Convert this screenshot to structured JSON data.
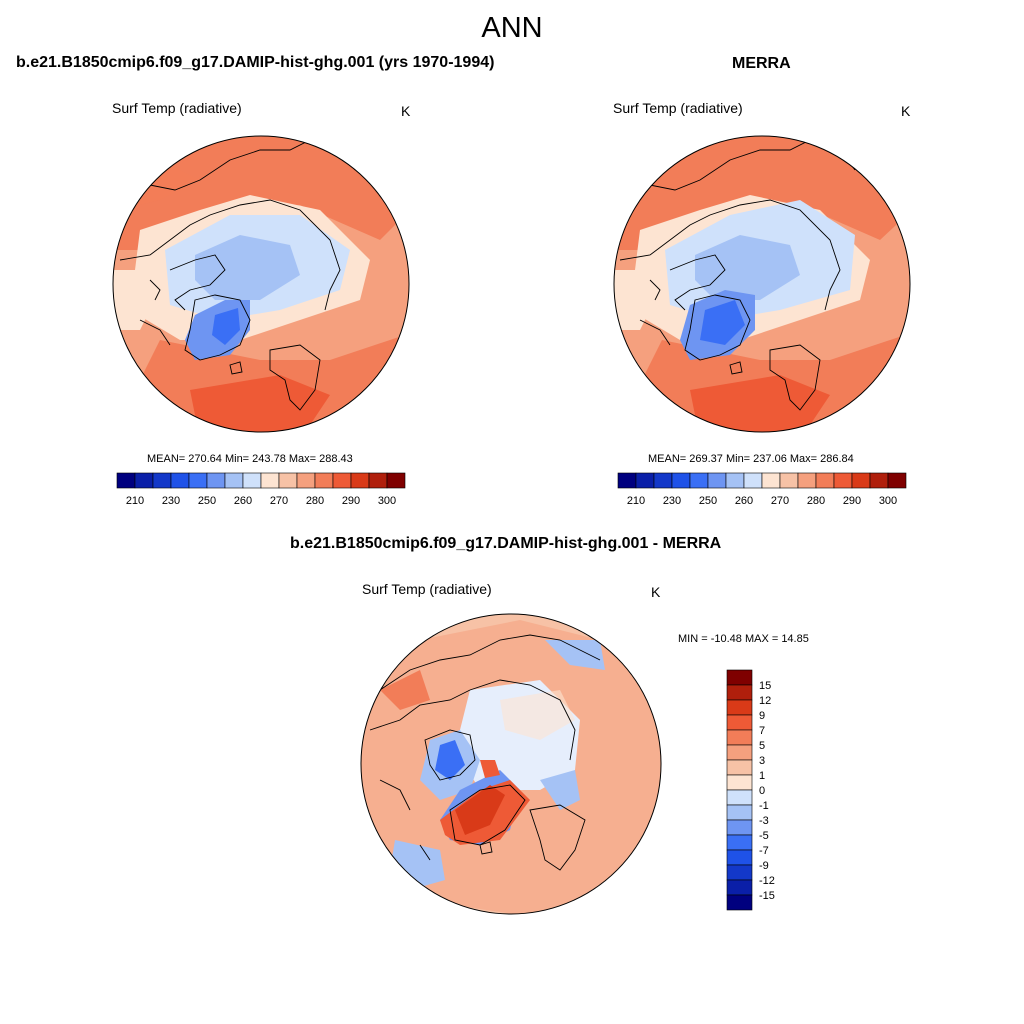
{
  "figure_title": "ANN",
  "panels": [
    {
      "title": "b.e21.B1850cmip6.f09_g17.DAMIP-hist-ghg.001 (yrs 1970-1994)",
      "variable": "Surf Temp (radiative)",
      "units": "K",
      "stats": "MEAN= 270.64  Min= 243.78  Max= 288.43"
    },
    {
      "title": "MERRA",
      "variable": "Surf Temp (radiative)",
      "units": "K",
      "stats": "MEAN= 269.37  Min= 237.06  Max= 286.84"
    },
    {
      "title": "b.e21.B1850cmip6.f09_g17.DAMIP-hist-ghg.001 - MERRA",
      "variable": "Surf Temp (radiative)",
      "units": "K",
      "stats": "MIN = -10.48 MAX =  14.85"
    }
  ],
  "colorbars": {
    "absolute": {
      "colors": [
        "#00007f",
        "#0a1fa8",
        "#1338c9",
        "#1f52e8",
        "#3a6ff5",
        "#6e95f2",
        "#a5c2f5",
        "#cfe1fb",
        "#fde4d2",
        "#f7c2a6",
        "#f5a07e",
        "#f27d58",
        "#ee5a36",
        "#d93a18",
        "#b01f0c",
        "#7f0000"
      ],
      "labels": [
        "210",
        "230",
        "250",
        "260",
        "270",
        "280",
        "290",
        "300"
      ]
    },
    "difference": {
      "colors": [
        "#7f0000",
        "#b01f0c",
        "#d93a18",
        "#ee5a36",
        "#f27d58",
        "#f5a07e",
        "#f7c2a6",
        "#fde4d2",
        "#cfe1fb",
        "#a5c2f5",
        "#6e95f2",
        "#3a6ff5",
        "#1f52e8",
        "#1338c9",
        "#0a1fa8",
        "#00007f"
      ],
      "labels": [
        "15",
        "12",
        "9",
        "7",
        "5",
        "3",
        "1",
        "0",
        "-1",
        "-3",
        "-5",
        "-7",
        "-9",
        "-12",
        "-15"
      ]
    }
  }
}
